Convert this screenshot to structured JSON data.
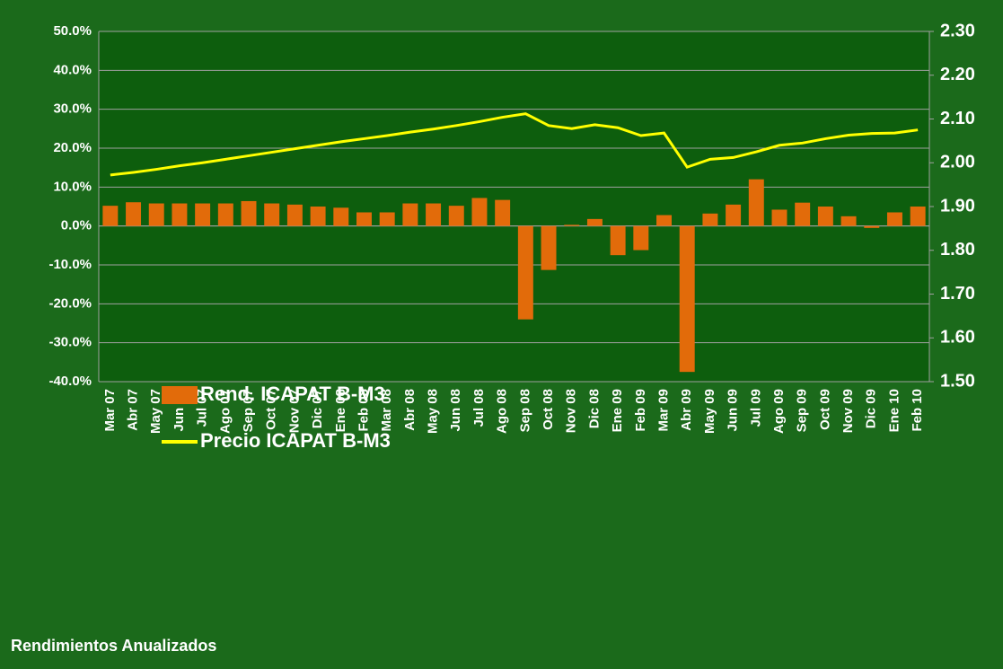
{
  "chart_data": {
    "type": "bar-line",
    "footer": "Rendimientos Anualizados",
    "categories": [
      "Mar 07",
      "Abr 07",
      "May 07",
      "Jun 07",
      "Jul 07",
      "Ago 07",
      "Sep 07",
      "Oct 07",
      "Nov 07",
      "Dic 07",
      "Ene 08",
      "Feb 08",
      "Mar 08",
      "Abr 08",
      "May 08",
      "Jun 08",
      "Jul 08",
      "Ago 08",
      "Sep 08",
      "Oct 08",
      "Nov 08",
      "Dic 08",
      "Ene 09",
      "Feb 09",
      "Mar 09",
      "Abr 09",
      "May 09",
      "Jun 09",
      "Jul 09",
      "Ago 09",
      "Sep 09",
      "Oct 09",
      "Nov 09",
      "Dic 09",
      "Ene 10",
      "Feb 10"
    ],
    "series": [
      {
        "name": "Rend. ICAPAT B-M3",
        "type": "bar",
        "color": "#e26b0a",
        "axis": "y",
        "values": [
          5.2,
          6.1,
          5.8,
          5.8,
          5.8,
          5.8,
          6.4,
          5.8,
          5.5,
          5.0,
          4.7,
          3.5,
          3.5,
          5.8,
          5.8,
          5.2,
          7.2,
          6.7,
          -24,
          -11.3,
          0.3,
          1.8,
          -7.5,
          -6.2,
          2.8,
          -37.5,
          3.2,
          5.5,
          12,
          4.2,
          6,
          5,
          2.5,
          -0.5,
          3.5,
          5.0
        ]
      },
      {
        "name": "Precio ICAPAT B-M3",
        "type": "line",
        "color": "#ffff00",
        "axis": "y2",
        "values": [
          1.972,
          1.978,
          1.985,
          1.993,
          2.0,
          2.008,
          2.016,
          2.024,
          2.032,
          2.04,
          2.048,
          2.055,
          2.062,
          2.07,
          2.077,
          2.085,
          2.094,
          2.104,
          2.112,
          2.085,
          2.078,
          2.087,
          2.08,
          2.062,
          2.068,
          1.99,
          2.008,
          2.012,
          2.025,
          2.04,
          2.045,
          2.055,
          2.063,
          2.067,
          2.068,
          2.075
        ]
      }
    ],
    "ylim": [
      -40,
      50
    ],
    "yticks": [
      {
        "value": -40,
        "label": "-40.0%"
      },
      {
        "value": -30,
        "label": "-30.0%"
      },
      {
        "value": -20,
        "label": "-20.0%"
      },
      {
        "value": -10,
        "label": "-10.0%"
      },
      {
        "value": 0,
        "label": "0.0%"
      },
      {
        "value": 10,
        "label": "10.0%"
      },
      {
        "value": 20,
        "label": "20.0%"
      },
      {
        "value": 30,
        "label": "30.0%"
      },
      {
        "value": 40,
        "label": "40.0%"
      },
      {
        "value": 50,
        "label": "50.0%"
      }
    ],
    "y2lim": [
      1.5,
      2.3
    ],
    "y2ticks": [
      {
        "value": 1.5,
        "label": "1.50"
      },
      {
        "value": 1.6,
        "label": "1.60"
      },
      {
        "value": 1.7,
        "label": "1.70"
      },
      {
        "value": 1.8,
        "label": "1.80"
      },
      {
        "value": 1.9,
        "label": "1.90"
      },
      {
        "value": 2.0,
        "label": "2.00"
      },
      {
        "value": 2.1,
        "label": "2.10"
      },
      {
        "value": 2.2,
        "label": "2.20"
      },
      {
        "value": 2.3,
        "label": "2.30"
      }
    ],
    "grid": true,
    "legend": "left"
  }
}
